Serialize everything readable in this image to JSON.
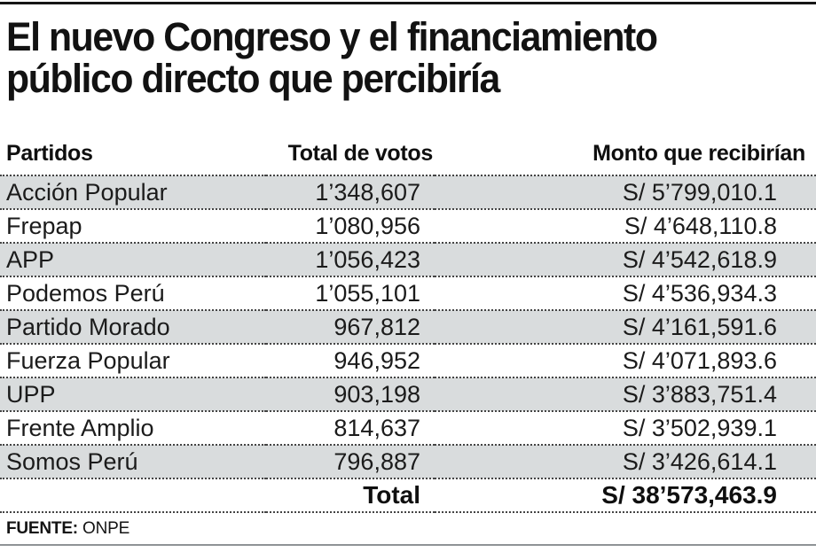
{
  "chart_data": {
    "type": "table",
    "title": "El nuevo Congreso y el financiamiento público directo que percibiría",
    "title_lines": [
      "El nuevo Congreso y el financiamiento",
      "público directo que percibiría"
    ],
    "columns": {
      "party": "Partidos",
      "votes": "Total de votos",
      "amount": "Monto que recibirían"
    },
    "rows": [
      {
        "party": "Acción Popular",
        "votes": "1’348,607",
        "amount": "S/ 5’799,010.1"
      },
      {
        "party": "Frepap",
        "votes": "1’080,956",
        "amount": "S/ 4’648,110.8"
      },
      {
        "party": "APP",
        "votes": "1’056,423",
        "amount": "S/ 4’542,618.9"
      },
      {
        "party": "Podemos Perú",
        "votes": "1’055,101",
        "amount": "S/ 4’536,934.3"
      },
      {
        "party": "Partido Morado",
        "votes": "967,812",
        "amount": "S/ 4’161,591.6"
      },
      {
        "party": "Fuerza Popular",
        "votes": "946,952",
        "amount": "S/ 4’071,893.6"
      },
      {
        "party": "UPP",
        "votes": "903,198",
        "amount": "S/ 3’883,751.4"
      },
      {
        "party": "Frente Amplio",
        "votes": "814,637",
        "amount": "S/ 3’502,939.1"
      },
      {
        "party": "Somos Perú",
        "votes": "796,887",
        "amount": "S/ 3’426,614.1"
      }
    ],
    "total_label": "Total",
    "total_amount": "S/ 38’573,463.9",
    "source_label": "FUENTE:",
    "source": "ONPE",
    "layout_hints": {
      "striped_rows": "odd rows shaded starting with first",
      "separators": "dotted"
    }
  },
  "colors": {
    "row_stripe": "#d9dcdd",
    "top_rule": "#161616",
    "bottom_rule": "#8f9396",
    "text": "#1b1b1b"
  }
}
